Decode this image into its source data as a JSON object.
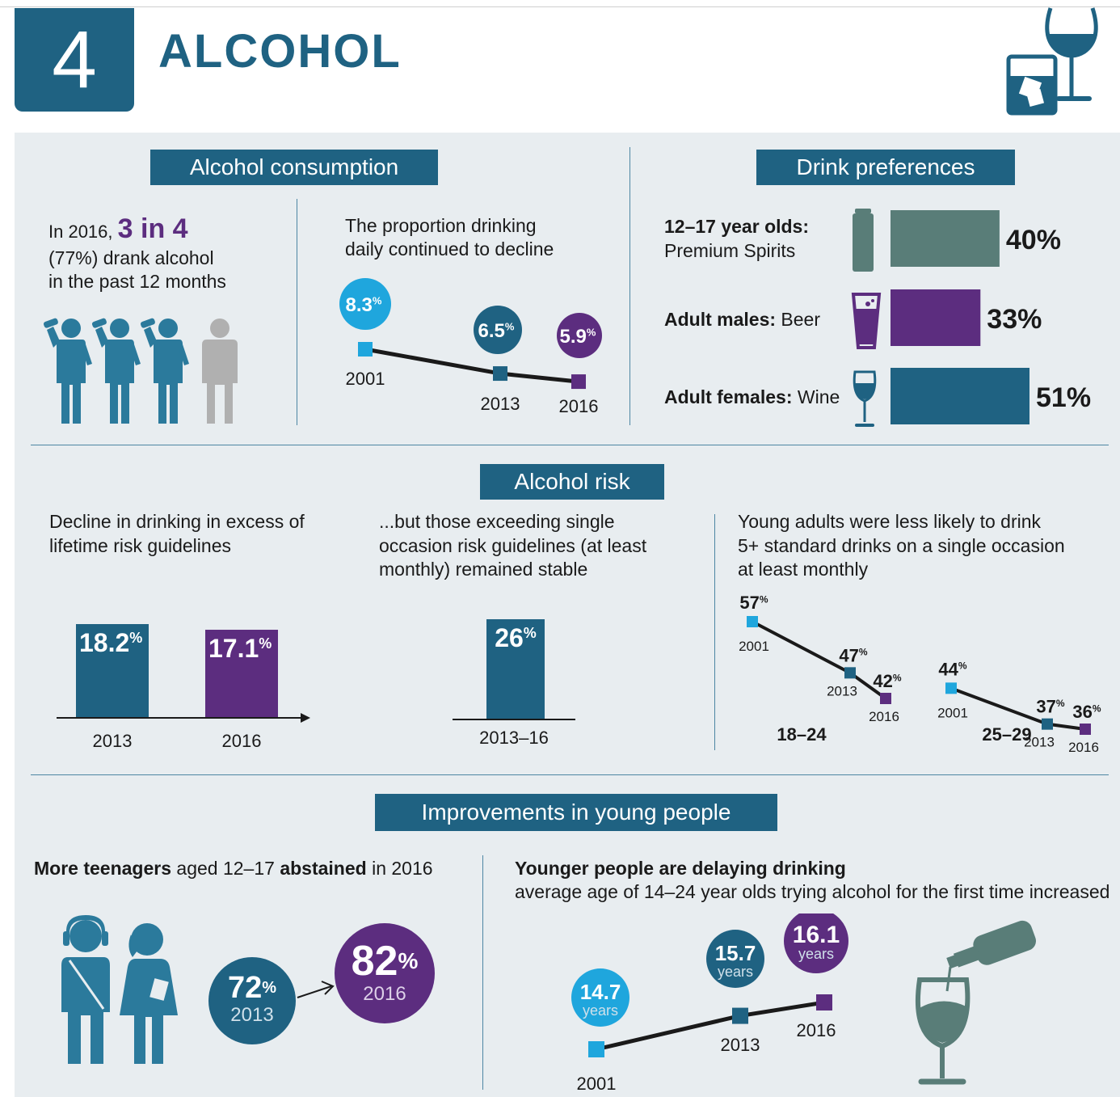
{
  "header": {
    "number": "4",
    "title": "ALCOHOL"
  },
  "sections": {
    "consumption": "Alcohol consumption",
    "preferences": "Drink preferences",
    "risk": "Alcohol risk",
    "young": "Improvements in young people"
  },
  "consumption": {
    "lead_prefix": "In 2016, ",
    "lead_highlight": "3 in 4",
    "lead_line2": "(77%) drank alcohol",
    "lead_line3": "in the past 12 months",
    "daily_title_1": "The proportion drinking",
    "daily_title_2": "daily continued to decline"
  },
  "preferences_text": [
    {
      "group": "12–17 year olds:",
      "drink": "Premium Spirits"
    },
    {
      "group": "Adult males:",
      "drink": "Beer"
    },
    {
      "group": "Adult females:",
      "drink": "Wine"
    }
  ],
  "risk": {
    "lifetime_title_1": "Decline in drinking in excess of",
    "lifetime_title_2": "lifetime risk guidelines",
    "single_title_1": "...but those exceeding single",
    "single_title_2": "occasion risk guidelines (at least",
    "single_title_3": "monthly) remained stable",
    "young_title_1": "Young adults were less likely to drink",
    "young_title_2": "5+ standard drinks on a single occasion",
    "young_title_3": "at least monthly"
  },
  "young": {
    "abstain_title_b1": "More teenagers",
    "abstain_title_t1": " aged 12–17 ",
    "abstain_title_b2": "abstained",
    "abstain_title_t2": " in 2016",
    "delay_title": "Younger people are delaying drinking",
    "delay_sub": "average age of 14–24 year olds trying alcohol for the first time increased",
    "circle1_value": "72",
    "circle1_year": "2013",
    "circle2_value": "82",
    "circle2_year": "2016",
    "pct": "%",
    "years_word": "years"
  },
  "colors": {
    "teal": "#1f6282",
    "light_blue": "#1fa6dd",
    "purple": "#5c2d7f",
    "grey_green": "#597d78",
    "grey": "#b0b0b0",
    "panel": "#e8edf0"
  },
  "icons": [
    "drinker-figure-icon",
    "non-drinker-figure-icon",
    "can-icon",
    "beer-glass-icon",
    "wine-glass-icon",
    "tumbler-and-wine-glass-icon",
    "teenagers-icon",
    "pouring-bottle-icon"
  ],
  "chart_data": [
    {
      "type": "line",
      "id": "daily",
      "x": [
        "2001",
        "2013",
        "2016"
      ],
      "values": [
        8.3,
        6.5,
        5.9
      ],
      "labels": [
        "8.3",
        "6.5",
        "5.9"
      ],
      "unit": "%"
    },
    {
      "type": "bar",
      "id": "drink_prefs",
      "categories": [
        "12–17 year olds: Premium Spirits",
        "Adult males: Beer",
        "Adult females: Wine"
      ],
      "values": [
        40,
        33,
        51
      ],
      "labels": [
        "40%",
        "33%",
        "51%"
      ]
    },
    {
      "type": "bar",
      "id": "lifetime",
      "categories": [
        "2013",
        "2016"
      ],
      "values": [
        18.2,
        17.1
      ],
      "labels": [
        "18.2",
        "17.1"
      ],
      "unit": "%"
    },
    {
      "type": "bar",
      "id": "single",
      "categories": [
        "2013–16"
      ],
      "values": [
        26
      ],
      "labels": [
        "26"
      ],
      "unit": "%"
    },
    {
      "type": "line",
      "id": "young_adults",
      "groups": [
        {
          "name": "18–24",
          "x": [
            "2001",
            "2013",
            "2016"
          ],
          "values": [
            57,
            47,
            42
          ],
          "labels": [
            "57",
            "47",
            "42"
          ]
        },
        {
          "name": "25–29",
          "x": [
            "2001",
            "2013",
            "2016"
          ],
          "values": [
            44,
            37,
            36
          ],
          "labels": [
            "44",
            "37",
            "36"
          ]
        }
      ],
      "unit": "%"
    },
    {
      "type": "line",
      "id": "first_age",
      "x": [
        "2001",
        "2013",
        "2016"
      ],
      "values": [
        14.7,
        15.7,
        16.1
      ],
      "labels": [
        "14.7",
        "15.7",
        "16.1"
      ]
    }
  ]
}
